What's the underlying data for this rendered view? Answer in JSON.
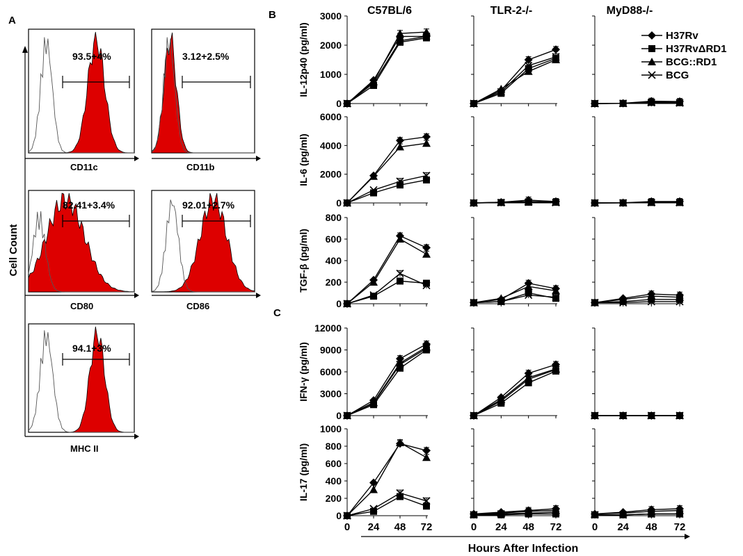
{
  "colors": {
    "fill": "#dd0000",
    "line": "#000000",
    "open": "#555555"
  },
  "panel_a": {
    "label": "A",
    "ylabel": "Cell Count",
    "histograms": [
      {
        "marker": "CD11c",
        "stat": "93.5+4%",
        "open_peak": 0.12,
        "filled_peak": 0.6
      },
      {
        "marker": "CD11b",
        "stat": "3.12+2.5%",
        "open_peak": 0.15,
        "filled_peak": 0.18
      },
      {
        "marker": "CD80",
        "stat": "82.41+3.4%",
        "open_peak": 0.12,
        "filled_peak": 0.35
      },
      {
        "marker": "CD86",
        "stat": "92.01+2.7%",
        "open_peak": 0.15,
        "filled_peak": 0.55
      },
      {
        "marker": "MHC II",
        "stat": "94.1+3%",
        "open_peak": 0.13,
        "filled_peak": 0.68
      }
    ]
  },
  "panel_b": {
    "label": "B"
  },
  "panel_c": {
    "label": "C"
  },
  "columns": [
    "C57BL/6",
    "TLR-2-/-",
    "MyD88-/-"
  ],
  "xlabel": "Hours After Infection",
  "legend": [
    "H37Rv",
    "H37RvΔRD1",
    "BCG::RD1",
    "BCG"
  ],
  "chart_data": {
    "type": "line",
    "x": [
      0,
      24,
      48,
      72
    ],
    "xticks": [
      "0",
      "24",
      "48",
      "72"
    ],
    "series_names": [
      "H37Rv",
      "H37RvΔRD1",
      "BCG::RD1",
      "BCG"
    ],
    "rows": [
      {
        "ylabel": "IL-12p40 (pg/ml)",
        "ylim": [
          0,
          3000
        ],
        "yticks": [
          "0",
          "1000",
          "2000",
          "3000"
        ],
        "data": [
          [
            [
              0,
              800,
              2300,
              2300
            ],
            [
              0,
              620,
              2100,
              2250
            ],
            [
              0,
              750,
              2400,
              2450
            ],
            [
              0,
              700,
              2150,
              2300
            ]
          ],
          [
            [
              0,
              450,
              1500,
              1850
            ],
            [
              0,
              350,
              1200,
              1550
            ],
            [
              0,
              500,
              1100,
              1500
            ],
            [
              0,
              400,
              1300,
              1600
            ]
          ],
          [
            [
              0,
              10,
              80,
              70
            ],
            [
              0,
              5,
              40,
              30
            ],
            [
              0,
              10,
              50,
              40
            ],
            [
              0,
              5,
              30,
              20
            ]
          ]
        ]
      },
      {
        "ylabel": "IL-6 (pg/ml)",
        "ylim": [
          0,
          6000
        ],
        "yticks": [
          "0",
          "2000",
          "4000",
          "6000"
        ],
        "data": [
          [
            [
              0,
              1900,
              4350,
              4600
            ],
            [
              0,
              700,
              1250,
              1600
            ],
            [
              0,
              1850,
              3900,
              4150
            ],
            [
              0,
              900,
              1500,
              1900
            ]
          ],
          [
            [
              0,
              50,
              200,
              100
            ],
            [
              0,
              30,
              50,
              50
            ],
            [
              0,
              50,
              100,
              60
            ],
            [
              0,
              20,
              50,
              30
            ]
          ],
          [
            [
              0,
              10,
              100,
              100
            ],
            [
              0,
              5,
              30,
              30
            ],
            [
              0,
              10,
              50,
              40
            ],
            [
              0,
              5,
              20,
              20
            ]
          ]
        ]
      },
      {
        "ylabel": "TGF-β (pg/ml)",
        "ylim": [
          0,
          800
        ],
        "yticks": [
          "0",
          "200",
          "400",
          "600",
          "800"
        ],
        "data": [
          [
            [
              0,
              220,
              630,
              520
            ],
            [
              0,
              70,
              210,
              190
            ],
            [
              0,
              200,
              600,
              460
            ],
            [
              0,
              80,
              280,
              170
            ]
          ],
          [
            [
              10,
              40,
              190,
              140
            ],
            [
              10,
              20,
              100,
              50
            ],
            [
              10,
              50,
              160,
              120
            ],
            [
              10,
              20,
              80,
              60
            ]
          ],
          [
            [
              10,
              50,
              90,
              80
            ],
            [
              10,
              20,
              40,
              40
            ],
            [
              10,
              40,
              70,
              60
            ],
            [
              10,
              10,
              20,
              20
            ]
          ]
        ]
      },
      {
        "ylabel": "IFN-γ (pg/ml)",
        "ylim": [
          0,
          12000
        ],
        "yticks": [
          "0",
          "3000",
          "6000",
          "9000",
          "12000"
        ],
        "data": [
          [
            [
              0,
              2100,
              7800,
              9800
            ],
            [
              0,
              1500,
              6500,
              9000
            ],
            [
              0,
              1800,
              7200,
              9400
            ],
            [
              0,
              1700,
              7000,
              9200
            ]
          ],
          [
            [
              0,
              2500,
              5800,
              7000
            ],
            [
              0,
              1700,
              4500,
              6100
            ],
            [
              0,
              2200,
              5200,
              6400
            ],
            [
              0,
              2000,
              5000,
              6300
            ]
          ],
          [
            [
              0,
              0,
              0,
              0
            ],
            [
              0,
              0,
              0,
              0
            ],
            [
              0,
              0,
              0,
              0
            ],
            [
              0,
              0,
              0,
              0
            ]
          ]
        ]
      },
      {
        "ylabel": "IL-17 (pg/ml)",
        "ylim": [
          0,
          1000
        ],
        "yticks": [
          "0",
          "200",
          "400",
          "600",
          "800",
          "1000"
        ],
        "data": [
          [
            [
              0,
              380,
              830,
              750
            ],
            [
              0,
              50,
              220,
              110
            ],
            [
              0,
              300,
              840,
              670
            ],
            [
              0,
              80,
              260,
              170
            ]
          ],
          [
            [
              20,
              40,
              60,
              80
            ],
            [
              10,
              10,
              20,
              20
            ],
            [
              20,
              30,
              50,
              60
            ],
            [
              10,
              20,
              30,
              40
            ]
          ],
          [
            [
              20,
              40,
              70,
              80
            ],
            [
              10,
              10,
              20,
              20
            ],
            [
              20,
              30,
              50,
              60
            ],
            [
              10,
              10,
              20,
              20
            ]
          ]
        ]
      }
    ]
  }
}
